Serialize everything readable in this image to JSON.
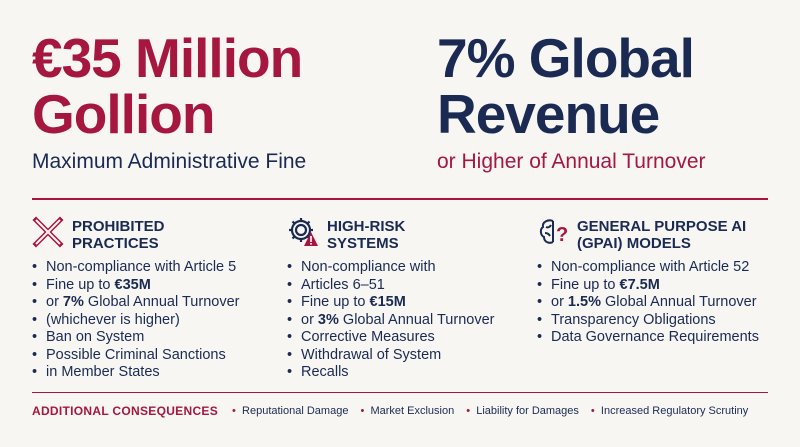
{
  "hero_left": {
    "headline_line1": "€35 Million",
    "headline_line2": "Gollion",
    "subtitle": "Maximum Administrative Fine"
  },
  "hero_right": {
    "headline_line1": "7% Global",
    "headline_line2": "Revenue",
    "subtitle": "or Higher of Annual Turnover"
  },
  "columns": [
    {
      "icon": "x-cross-icon",
      "title_line1": "PROHIBITED",
      "title_line2": "PRACTICES",
      "items": [
        {
          "pre": "Non-compliance with Article 5"
        },
        {
          "pre": "Fine up to ",
          "bold": "€35M"
        },
        {
          "pre": "or ",
          "bold": "7%",
          "post": " Global Annual Turnover"
        },
        {
          "pre": "(whichever is higher)"
        },
        {
          "pre": "Ban on System"
        },
        {
          "pre": "Possible Criminal Sanctions"
        },
        {
          "pre": "in Member States"
        }
      ]
    },
    {
      "icon": "gear-warning-icon",
      "title_line1": "HIGH-RISK",
      "title_line2": "SYSTEMS",
      "items": [
        {
          "pre": "Non-compliance with"
        },
        {
          "pre": "Articles 6–51"
        },
        {
          "pre": "Fine up to ",
          "bold": "€15M"
        },
        {
          "pre": "or ",
          "bold": "3%",
          "post": " Global Annual Turnover"
        },
        {
          "pre": "Corrective Measures"
        },
        {
          "pre": "Withdrawal of System"
        },
        {
          "pre": "Recalls"
        }
      ]
    },
    {
      "icon": "brain-question-icon",
      "title_line1": "GENERAL PURPOSE AI",
      "title_line2": "(GPAI) MODELS",
      "items": [
        {
          "pre": "Non-compliance with Article 52"
        },
        {
          "pre": "Fine up to ",
          "bold": "€7.5M"
        },
        {
          "pre": "or ",
          "bold": "1.5%",
          "post": " Global Annual Turnover"
        },
        {
          "pre": "Transparency Obligations"
        },
        {
          "pre": "Data Governance Requirements"
        }
      ]
    }
  ],
  "consequences": {
    "label": "ADDITIONAL CONSEQUENCES",
    "items": [
      "Reputational Damage",
      "Market Exclusion",
      "Liability for Damages",
      "Increased Regulatory Scrutiny"
    ]
  },
  "colors": {
    "accent_red": "#a6173f",
    "navy": "#1a2a52",
    "background": "#f7f6f3"
  }
}
